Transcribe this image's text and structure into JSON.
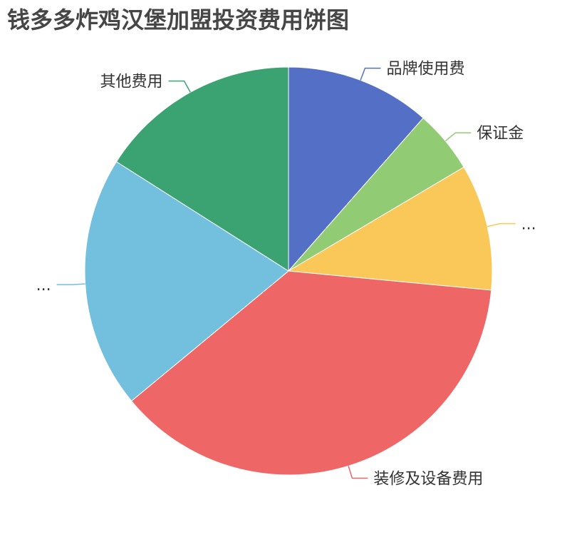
{
  "chart_data": {
    "type": "pie",
    "title": "钱多多炸鸡汉堡加盟投资费用饼图",
    "slices": [
      {
        "label": "品牌使用费",
        "value": 11.5,
        "color": "#5470c6"
      },
      {
        "label": "保证金",
        "value": 5.0,
        "color": "#91cc75"
      },
      {
        "label": "...",
        "value": 10.0,
        "color": "#fac858"
      },
      {
        "label": "装修及设备费用",
        "value": 37.5,
        "color": "#ee6666"
      },
      {
        "label": "...",
        "value": 20.0,
        "color": "#73c0de"
      },
      {
        "label": "其他费用",
        "value": 16.0,
        "color": "#3ba272"
      }
    ],
    "legend": "none",
    "start_angle": "top, clockwise"
  }
}
